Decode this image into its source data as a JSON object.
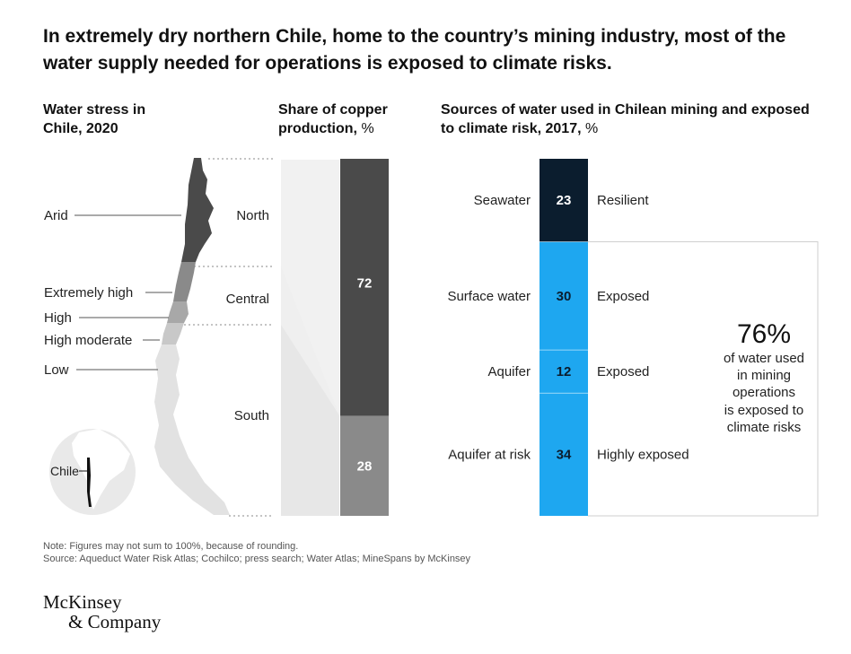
{
  "title": "In extremely dry northern Chile, home to the country’s mining industry, most of the water supply needed for operations is exposed to climate risks.",
  "headers": {
    "water_stress": "Water stress in Chile, 2020",
    "copper_share_main": "Share of copper production,",
    "copper_share_unit": "%",
    "sources_main": "Sources of water used in Chilean mining and exposed to climate risk, 2017,",
    "sources_unit": "%"
  },
  "chart_data": [
    {
      "type": "map",
      "title": "Water stress in Chile, 2020",
      "legend": [
        {
          "label": "Arid",
          "color": "#4a4a4a"
        },
        {
          "label": "Extremely high",
          "color": "#8a8a8a"
        },
        {
          "label": "High",
          "color": "#a8a8a8"
        },
        {
          "label": "High moderate",
          "color": "#c8c8c8"
        },
        {
          "label": "Low",
          "color": "#e2e2e2"
        }
      ],
      "regions": [
        "North",
        "Central",
        "South"
      ],
      "inset_label": "Chile"
    },
    {
      "type": "bar",
      "stacked": true,
      "title": "Share of copper production, %",
      "categories": [
        "North + Central",
        "South"
      ],
      "values": [
        72,
        28
      ],
      "colors": [
        "#4a4a4a",
        "#8a8a8a"
      ]
    },
    {
      "type": "bar",
      "stacked": true,
      "title": "Sources of water used in Chilean mining and exposed to climate risk, 2017, %",
      "categories": [
        "Seawater",
        "Surface water",
        "Aquifer",
        "Aquifer at risk"
      ],
      "values": [
        23,
        30,
        12,
        34
      ],
      "risk": [
        "Resilient",
        "Exposed",
        "Exposed",
        "Highly exposed"
      ],
      "colors": [
        "#0b1d2e",
        "#1ea7f0",
        "#1ea7f0",
        "#1ea7f0"
      ]
    }
  ],
  "callout": {
    "value": "76%",
    "text_lines": [
      "of water used",
      "in mining",
      "operations",
      "is exposed to",
      "climate risks"
    ]
  },
  "note": "Note: Figures may not sum to 100%, because of rounding.",
  "source": "Source: Aqueduct Water Risk Atlas; Cochilco; press search; Water Atlas; MineSpans by McKinsey",
  "logo": {
    "line1": "McKinsey",
    "line2": "& Company"
  }
}
